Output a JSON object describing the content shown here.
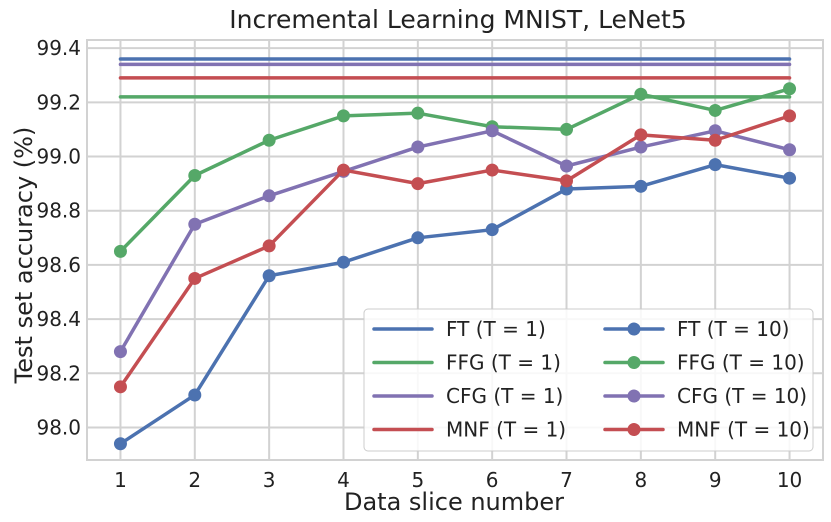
{
  "chart_data": {
    "type": "line",
    "title": "Incremental Learning MNIST, LeNet5",
    "xlabel": "Data slice number",
    "ylabel": "Test set accuracy (%)",
    "xlim": [
      0.55,
      10.45
    ],
    "ylim": [
      97.88,
      99.43
    ],
    "xticks": [
      1,
      2,
      3,
      4,
      5,
      6,
      7,
      8,
      9,
      10
    ],
    "yticks": [
      98.0,
      98.2,
      98.4,
      98.6,
      98.8,
      99.0,
      99.2,
      99.4
    ],
    "ytick_labels": [
      "98.0",
      "98.2",
      "98.4",
      "98.6",
      "98.8",
      "99.0",
      "99.2",
      "99.4"
    ],
    "grid": true,
    "legend_position": "bottom-right",
    "series": [
      {
        "name": "FT (T = 1)",
        "color": "#4c72b0",
        "style": "line",
        "x": [
          1,
          10
        ],
        "values": [
          99.36,
          99.36
        ]
      },
      {
        "name": "FFG (T = 1)",
        "color": "#55a868",
        "style": "line",
        "x": [
          1,
          10
        ],
        "values": [
          99.22,
          99.22
        ]
      },
      {
        "name": "CFG (T = 1)",
        "color": "#8172b2",
        "style": "line",
        "x": [
          1,
          10
        ],
        "values": [
          99.34,
          99.34
        ]
      },
      {
        "name": "MNF (T = 1)",
        "color": "#c44e52",
        "style": "line",
        "x": [
          1,
          10
        ],
        "values": [
          99.29,
          99.29
        ]
      },
      {
        "name": "FT (T = 10)",
        "color": "#4c72b0",
        "style": "line-marker",
        "x": [
          1,
          2,
          3,
          4,
          5,
          6,
          7,
          8,
          9,
          10
        ],
        "values": [
          97.94,
          98.12,
          98.56,
          98.61,
          98.7,
          98.73,
          98.88,
          98.89,
          98.97,
          98.92
        ]
      },
      {
        "name": "FFG (T = 10)",
        "color": "#55a868",
        "style": "line-marker",
        "x": [
          1,
          2,
          3,
          4,
          5,
          6,
          7,
          8,
          9,
          10
        ],
        "values": [
          98.65,
          98.93,
          99.06,
          99.15,
          99.16,
          99.11,
          99.1,
          99.23,
          99.17,
          99.25
        ]
      },
      {
        "name": "CFG (T = 10)",
        "color": "#8172b2",
        "style": "line-marker",
        "x": [
          1,
          2,
          3,
          4,
          5,
          6,
          7,
          8,
          9,
          10
        ],
        "values": [
          98.28,
          98.75,
          98.855,
          98.945,
          99.035,
          99.095,
          98.965,
          99.035,
          99.095,
          99.025
        ]
      },
      {
        "name": "MNF (T = 10)",
        "color": "#c44e52",
        "style": "line-marker",
        "x": [
          1,
          2,
          3,
          4,
          5,
          6,
          7,
          8,
          9,
          10
        ],
        "values": [
          98.15,
          98.55,
          98.67,
          98.95,
          98.9,
          98.95,
          98.91,
          99.08,
          99.06,
          99.15
        ]
      }
    ]
  }
}
